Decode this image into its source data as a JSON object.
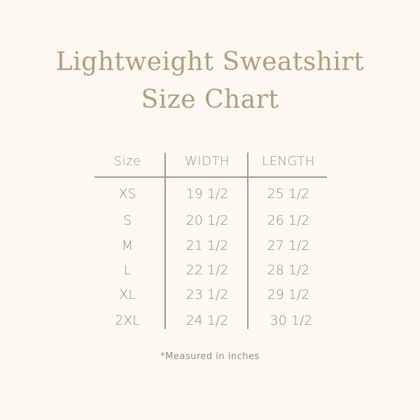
{
  "title": {
    "line1": "Lightweight Sweatshirt",
    "line2": "Size Chart"
  },
  "table": {
    "headers": [
      "Size",
      "WIDTH",
      "LENGTH"
    ],
    "rows": [
      [
        "XS",
        "19 1/2",
        "25 1/2"
      ],
      [
        "S",
        "20 1/2",
        "26 1/2"
      ],
      [
        "M",
        "21 1/2",
        "27 1/2"
      ],
      [
        "L",
        "22 1/2",
        "28 1/2"
      ],
      [
        "XL",
        "23 1/2",
        "29 1/2"
      ],
      [
        "2XL",
        "24 1/2",
        "30 1/2"
      ]
    ]
  },
  "note": "*Measured in inches",
  "colors": {
    "background": "#fdf8f1",
    "title": "#b39d80",
    "text": "#9a8b7c",
    "lines": "#a99a8a"
  }
}
